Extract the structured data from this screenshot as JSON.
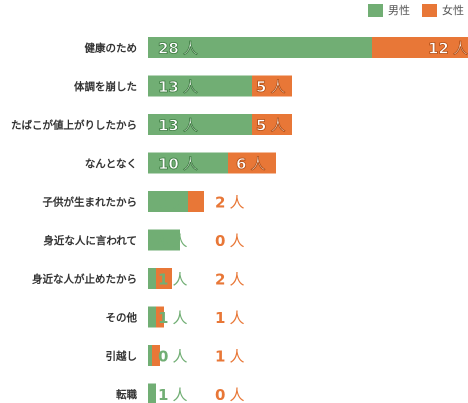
{
  "colors": {
    "male": "#71ae74",
    "female": "#e87737"
  },
  "legend": {
    "male": "男性",
    "female": "女性"
  },
  "chart_data": {
    "type": "bar",
    "stacked": true,
    "orientation": "horizontal",
    "unit": "人",
    "categories": [
      "健康のため",
      "体調を崩した",
      "たばこが値上がりしたから",
      "なんとなく",
      "子供が生まれたから",
      "身近な人に言われて",
      "身近な人が止めたから",
      "その他",
      "引越し",
      "転職"
    ],
    "series": [
      {
        "name": "男性",
        "values": [
          28,
          13,
          13,
          10,
          5,
          4,
          1,
          1,
          0,
          1
        ]
      },
      {
        "name": "女性",
        "values": [
          12,
          5,
          5,
          6,
          2,
          0,
          2,
          1,
          1,
          0
        ]
      }
    ],
    "xlim": [
      0,
      40
    ],
    "grid": false,
    "legend_position": "top-right"
  }
}
